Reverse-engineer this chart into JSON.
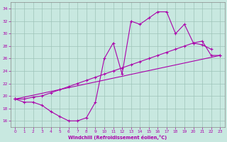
{
  "bg_color": "#c8e8e0",
  "grid_color": "#9dc4b8",
  "line_color": "#aa00aa",
  "xlabel": "Windchill (Refroidissement éolien,°C)",
  "xlim": [
    -0.5,
    23.5
  ],
  "ylim": [
    15,
    35
  ],
  "yticks": [
    16,
    18,
    20,
    22,
    24,
    26,
    28,
    30,
    32,
    34
  ],
  "xticks": [
    0,
    1,
    2,
    3,
    4,
    5,
    6,
    7,
    8,
    9,
    10,
    11,
    12,
    13,
    14,
    15,
    16,
    17,
    18,
    19,
    20,
    21,
    22,
    23
  ],
  "line1_x": [
    0,
    1,
    2,
    3,
    4,
    5,
    6,
    7,
    8,
    9,
    10,
    11,
    12,
    13,
    14,
    15,
    16,
    17,
    18,
    19,
    20,
    21,
    22
  ],
  "line1_y": [
    19.5,
    19.0,
    19.0,
    18.5,
    17.5,
    16.7,
    16.0,
    16.0,
    16.5,
    19.0,
    26.0,
    28.5,
    23.5,
    32.0,
    31.5,
    32.5,
    33.5,
    33.5,
    30.0,
    31.5,
    28.5,
    28.2,
    27.5
  ],
  "line2_x": [
    0,
    1,
    2,
    3,
    4,
    5,
    6,
    7,
    8,
    9,
    10,
    11,
    12,
    13,
    14,
    15,
    16,
    17,
    18,
    19,
    20,
    21,
    22,
    23
  ],
  "line2_y": [
    19.5,
    19.5,
    19.8,
    20.0,
    20.5,
    21.0,
    21.5,
    22.0,
    22.5,
    23.0,
    23.5,
    24.0,
    24.5,
    25.0,
    25.5,
    26.0,
    26.5,
    27.0,
    27.5,
    28.0,
    28.5,
    28.8,
    26.5,
    26.5
  ],
  "line3_x": [
    0,
    23
  ],
  "line3_y": [
    19.5,
    26.5
  ]
}
